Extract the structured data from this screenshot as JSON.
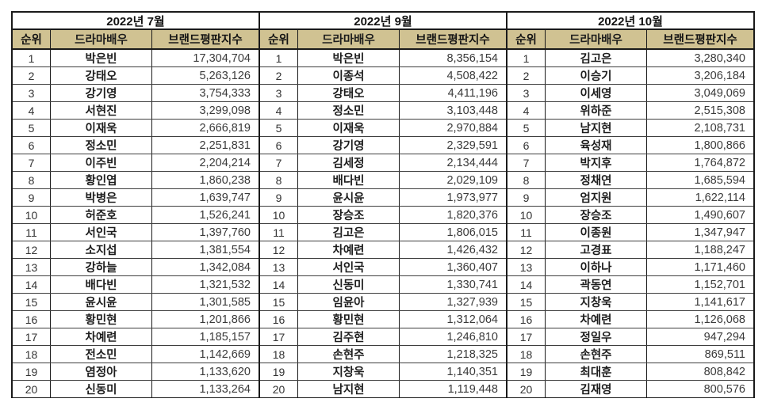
{
  "columns": [
    "순위",
    "드라마배우",
    "브랜드평판지수"
  ],
  "colors": {
    "header_bg": "#d0c292",
    "outer_border": "#1a1a1a",
    "row_line": "#3f3f3f",
    "name_text": "#1d1d1d",
    "number_text": "#3a3a3a"
  },
  "groups": [
    {
      "month": "2022년 7월",
      "rows": [
        [
          "1",
          "박은빈",
          "17,304,704"
        ],
        [
          "2",
          "강태오",
          "5,263,126"
        ],
        [
          "3",
          "강기영",
          "3,754,333"
        ],
        [
          "4",
          "서현진",
          "3,299,098"
        ],
        [
          "5",
          "이재욱",
          "2,666,819"
        ],
        [
          "6",
          "정소민",
          "2,251,831"
        ],
        [
          "7",
          "이주빈",
          "2,204,214"
        ],
        [
          "8",
          "황인엽",
          "1,860,238"
        ],
        [
          "9",
          "박병은",
          "1,639,747"
        ],
        [
          "10",
          "허준호",
          "1,526,241"
        ],
        [
          "11",
          "서인국",
          "1,397,760"
        ],
        [
          "12",
          "소지섭",
          "1,381,554"
        ],
        [
          "13",
          "강하늘",
          "1,342,084"
        ],
        [
          "14",
          "배다빈",
          "1,321,532"
        ],
        [
          "15",
          "윤시윤",
          "1,301,585"
        ],
        [
          "16",
          "황민현",
          "1,201,866"
        ],
        [
          "17",
          "차예련",
          "1,185,157"
        ],
        [
          "18",
          "전소민",
          "1,142,669"
        ],
        [
          "19",
          "염정아",
          "1,133,620"
        ],
        [
          "20",
          "신동미",
          "1,133,264"
        ]
      ]
    },
    {
      "month": "2022년 9월",
      "rows": [
        [
          "1",
          "박은빈",
          "8,356,154"
        ],
        [
          "2",
          "이종석",
          "4,508,422"
        ],
        [
          "3",
          "강태오",
          "4,411,196"
        ],
        [
          "4",
          "정소민",
          "3,103,448"
        ],
        [
          "5",
          "이재욱",
          "2,970,884"
        ],
        [
          "6",
          "강기영",
          "2,329,591"
        ],
        [
          "7",
          "김세정",
          "2,134,444"
        ],
        [
          "8",
          "배다빈",
          "2,029,109"
        ],
        [
          "9",
          "윤시윤",
          "1,973,977"
        ],
        [
          "10",
          "장승조",
          "1,820,376"
        ],
        [
          "11",
          "김고은",
          "1,806,015"
        ],
        [
          "12",
          "차예련",
          "1,426,432"
        ],
        [
          "13",
          "서인국",
          "1,360,407"
        ],
        [
          "14",
          "신동미",
          "1,330,741"
        ],
        [
          "15",
          "임윤아",
          "1,327,939"
        ],
        [
          "16",
          "황민현",
          "1,312,064"
        ],
        [
          "17",
          "김주현",
          "1,246,810"
        ],
        [
          "18",
          "손현주",
          "1,218,325"
        ],
        [
          "19",
          "지창욱",
          "1,140,351"
        ],
        [
          "20",
          "남지현",
          "1,119,448"
        ]
      ]
    },
    {
      "month": "2022년 10월",
      "rows": [
        [
          "1",
          "김고은",
          "3,280,340"
        ],
        [
          "2",
          "이승기",
          "3,206,184"
        ],
        [
          "3",
          "이세영",
          "3,049,069"
        ],
        [
          "4",
          "위하준",
          "2,515,308"
        ],
        [
          "5",
          "남지현",
          "2,108,731"
        ],
        [
          "6",
          "육성재",
          "1,800,866"
        ],
        [
          "7",
          "박지후",
          "1,764,872"
        ],
        [
          "8",
          "정채연",
          "1,685,594"
        ],
        [
          "9",
          "엄지원",
          "1,622,114"
        ],
        [
          "10",
          "장승조",
          "1,490,607"
        ],
        [
          "11",
          "이종원",
          "1,347,947"
        ],
        [
          "12",
          "고경표",
          "1,188,247"
        ],
        [
          "13",
          "이하나",
          "1,171,460"
        ],
        [
          "14",
          "곽동연",
          "1,152,701"
        ],
        [
          "15",
          "지창욱",
          "1,141,617"
        ],
        [
          "16",
          "차예련",
          "1,126,068"
        ],
        [
          "17",
          "정일우",
          "947,294"
        ],
        [
          "18",
          "손현주",
          "869,511"
        ],
        [
          "19",
          "최대훈",
          "808,842"
        ],
        [
          "20",
          "김재영",
          "800,576"
        ]
      ]
    }
  ]
}
